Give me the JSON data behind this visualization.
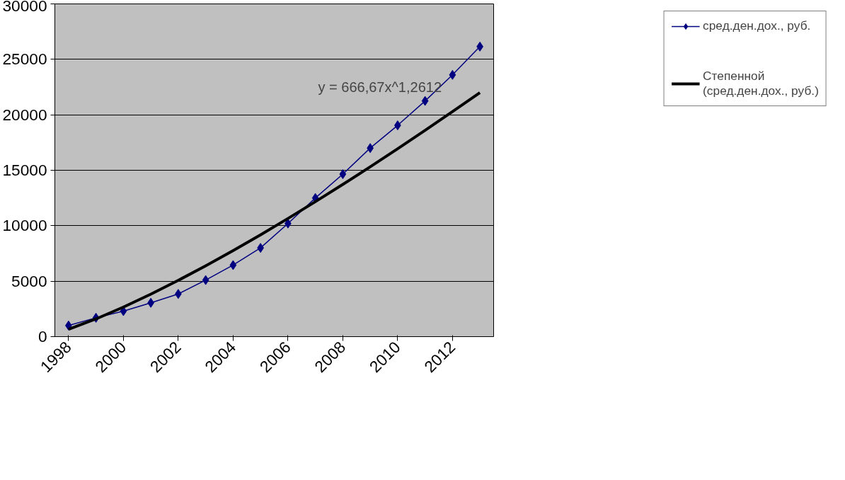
{
  "chart_data": {
    "type": "line",
    "categories": [
      "1998",
      null,
      "2000",
      null,
      "2002",
      null,
      "2004",
      null,
      "2006",
      null,
      "2008",
      null,
      "2010",
      null,
      "2012",
      null
    ],
    "series": [
      {
        "name": "сред.ден.дох., руб.",
        "color": "#000080",
        "marker": "diamond",
        "values": [
          1000,
          1700,
          2300,
          3050,
          3850,
          5100,
          6450,
          8000,
          10200,
          12500,
          14650,
          17000,
          19050,
          21250,
          23600,
          26150
        ]
      },
      {
        "name": "Степенной (сред.ден.дох., руб.)",
        "color": "#000000",
        "marker": "none",
        "values": [
          667,
          1598,
          2665,
          3831,
          5075,
          6387,
          7760,
          9180,
          10650,
          12165,
          13720,
          15310,
          16935,
          18595,
          20290,
          22000
        ]
      }
    ],
    "annotations": [
      "y = 666,67x^1,2612"
    ],
    "ylim": [
      0,
      30000
    ],
    "yticks": [
      0,
      5000,
      10000,
      15000,
      20000,
      25000,
      30000
    ],
    "grid": "y",
    "legend": "right"
  }
}
